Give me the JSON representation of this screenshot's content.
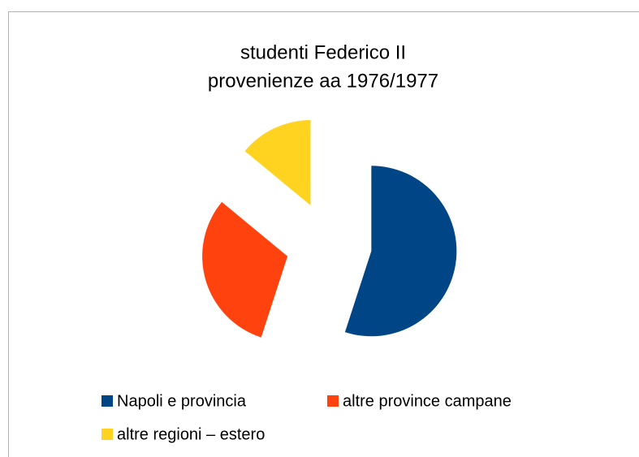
{
  "chart_data": {
    "type": "pie",
    "title": [
      "studenti Federico II",
      "provenienze aa 1976/1977"
    ],
    "categories": [
      "Napoli e provincia",
      "altre province campane",
      "altre regioni – estero"
    ],
    "values": [
      55,
      31,
      14
    ],
    "colors": [
      "#004586",
      "#ff420e",
      "#ffd320"
    ],
    "exploded": true
  }
}
